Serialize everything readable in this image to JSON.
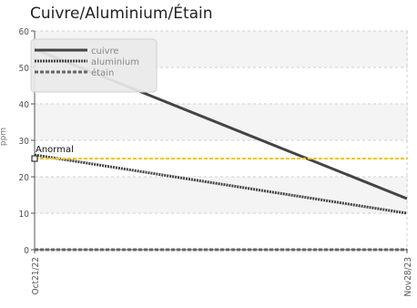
{
  "chart_data": {
    "type": "line",
    "title": "Cuivre/Aluminium/Étain",
    "xlabel": "",
    "ylabel": "ppm",
    "categories": [
      "Oct21/22",
      "Nov28/23"
    ],
    "ylim": [
      0,
      60
    ],
    "yticks": [
      0,
      10,
      20,
      30,
      40,
      50,
      60
    ],
    "grid": true,
    "legend_position": "top-left",
    "series": [
      {
        "name": "cuivre",
        "values": [
          55,
          14
        ],
        "color": "#444444",
        "style": "solid"
      },
      {
        "name": "aluminium",
        "values": [
          26,
          10
        ],
        "color": "#444444",
        "style": "dotted"
      },
      {
        "name": "étain",
        "values": [
          0,
          0
        ],
        "color": "#666666",
        "style": "dashed"
      }
    ],
    "annotations": [
      {
        "label": "Anormal",
        "value": 25,
        "color": "#f5c400"
      }
    ]
  }
}
